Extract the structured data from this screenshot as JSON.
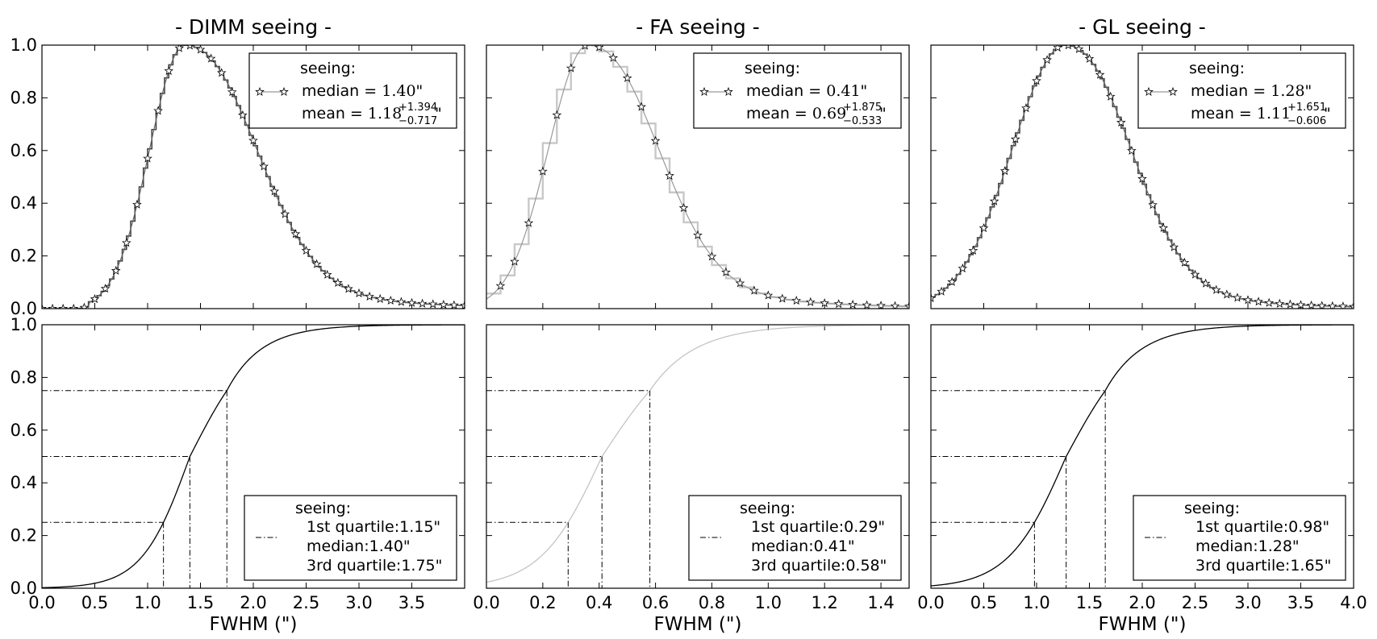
{
  "chart_data": [
    {
      "type": "step",
      "panel": "pdf",
      "title": "- DIMM seeing -",
      "xlim": [
        0,
        4.0
      ],
      "ylim": [
        0,
        1.0
      ],
      "xlabel": "",
      "yticks": [
        "0.0",
        "0.2",
        "0.4",
        "0.6",
        "0.8",
        "1.0"
      ],
      "legend": {
        "heading": "seeing:",
        "median_prefix": "median = ",
        "median_value": "1.40",
        "mean_prefix": "mean = ",
        "mean_value": "1.18",
        "mean_sup": "+1.394",
        "mean_sub": "−0.717"
      },
      "distribution": {
        "mode": 1.35,
        "width_left": 0.33,
        "width_right": 0.6,
        "tail": 0.9,
        "cutoff_low": 0.45
      },
      "color": "#000000",
      "bin_width": 0.04,
      "marker_spacing": 0.1
    },
    {
      "type": "step",
      "panel": "pdf",
      "title": "- FA seeing -",
      "xlim": [
        0,
        1.5
      ],
      "ylim": [
        0,
        1.0
      ],
      "xlabel": "",
      "yticks": [
        "0.0",
        "0.2",
        "0.4",
        "0.6",
        "0.8",
        "1.0"
      ],
      "legend": {
        "heading": "seeing:",
        "median_prefix": "median = ",
        "median_value": "0.41",
        "mean_prefix": "mean = ",
        "mean_value": "0.69",
        "mean_sup": "+1.875",
        "mean_sub": "−0.533"
      },
      "distribution": {
        "mode": 0.36,
        "width_left": 0.14,
        "width_right": 0.22,
        "tail": 0.35,
        "cutoff_low": null
      },
      "color": "#aaaaaa",
      "bin_width": 0.05,
      "marker_spacing": 0.05
    },
    {
      "type": "step",
      "panel": "pdf",
      "title": "- GL seeing -",
      "xlim": [
        0,
        4.0
      ],
      "ylim": [
        0,
        1.0
      ],
      "xlabel": "",
      "yticks": [
        "0.0",
        "0.2",
        "0.4",
        "0.6",
        "0.8",
        "1.0"
      ],
      "legend": {
        "heading": "seeing:",
        "median_prefix": "median = ",
        "median_value": "1.28",
        "mean_prefix": "mean = ",
        "mean_value": "1.11",
        "mean_sup": "+1.651",
        "mean_sub": "−0.606"
      },
      "distribution": {
        "mode": 1.27,
        "width_left": 0.5,
        "width_right": 0.55,
        "tail": 0.8,
        "cutoff_low": null
      },
      "color": "#000000",
      "bin_width": 0.04,
      "marker_spacing": 0.1
    },
    {
      "type": "line",
      "panel": "cdf",
      "xlim": [
        0,
        4.0
      ],
      "ylim": [
        0,
        1.0
      ],
      "xlabel": "FWHM (\")",
      "xticks": [
        "0.0",
        "0.5",
        "1.0",
        "1.5",
        "2.0",
        "2.5",
        "3.0",
        "3.5"
      ],
      "xtick_values": [
        0,
        0.5,
        1.0,
        1.5,
        2.0,
        2.5,
        3.0,
        3.5
      ],
      "yticks": [
        "0.0",
        "0.2",
        "0.4",
        "0.6",
        "0.8",
        "1.0"
      ],
      "quartiles": [
        1.15,
        1.4,
        1.75
      ],
      "legend": {
        "heading": "seeing:",
        "q1": "1st quartile:1.15\"",
        "median": "median:1.40\"",
        "q3": "3rd quartile:1.75\""
      },
      "color": "#000000"
    },
    {
      "type": "line",
      "panel": "cdf",
      "xlim": [
        0,
        1.5
      ],
      "ylim": [
        0,
        1.0
      ],
      "xlabel": "FWHM (\")",
      "xticks": [
        "0.0",
        "0.2",
        "0.4",
        "0.6",
        "0.8",
        "1.0",
        "1.2",
        "1.4"
      ],
      "xtick_values": [
        0,
        0.2,
        0.4,
        0.6,
        0.8,
        1.0,
        1.2,
        1.4
      ],
      "yticks": [
        "0.0",
        "0.2",
        "0.4",
        "0.6",
        "0.8",
        "1.0"
      ],
      "quartiles": [
        0.29,
        0.41,
        0.58
      ],
      "legend": {
        "heading": "seeing:",
        "q1": "1st quartile:0.29\"",
        "median": "median:0.41\"",
        "q3": "3rd quartile:0.58\""
      },
      "color": "#c4c4c4"
    },
    {
      "type": "line",
      "panel": "cdf",
      "xlim": [
        0,
        4.0
      ],
      "ylim": [
        0,
        1.0
      ],
      "xlabel": "FWHM (\")",
      "xticks": [
        "0.0",
        "0.5",
        "1.0",
        "1.5",
        "2.0",
        "2.5",
        "3.0",
        "3.5",
        "4.0"
      ],
      "xtick_values": [
        0,
        0.5,
        1.0,
        1.5,
        2.0,
        2.5,
        3.0,
        3.5,
        4.0
      ],
      "yticks": [
        "0.0",
        "0.2",
        "0.4",
        "0.6",
        "0.8",
        "1.0"
      ],
      "quartiles": [
        0.98,
        1.28,
        1.65
      ],
      "legend": {
        "heading": "seeing:",
        "q1": "1st quartile:0.98\"",
        "median": "median:1.28\"",
        "q3": "3rd quartile:1.65\""
      },
      "color": "#000000"
    }
  ],
  "units": {
    "arcsec": "\""
  }
}
